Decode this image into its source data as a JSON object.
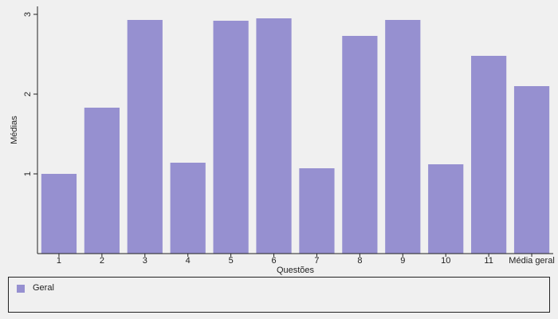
{
  "chart_data": {
    "type": "bar",
    "categories": [
      "1",
      "2",
      "3",
      "4",
      "5",
      "6",
      "7",
      "8",
      "9",
      "10",
      "11",
      "Média geral"
    ],
    "series": [
      {
        "name": "Geral",
        "color": "#9690d0",
        "values": [
          1.0,
          1.83,
          2.93,
          1.14,
          2.92,
          2.95,
          1.07,
          2.73,
          2.93,
          1.12,
          2.48,
          2.1
        ]
      }
    ],
    "title": "",
    "xlabel": "Questões",
    "ylabel": "Médias",
    "ylim": [
      0,
      3.1
    ],
    "yticks": [
      1,
      2,
      3
    ],
    "grid": false,
    "legend": "bottom"
  }
}
